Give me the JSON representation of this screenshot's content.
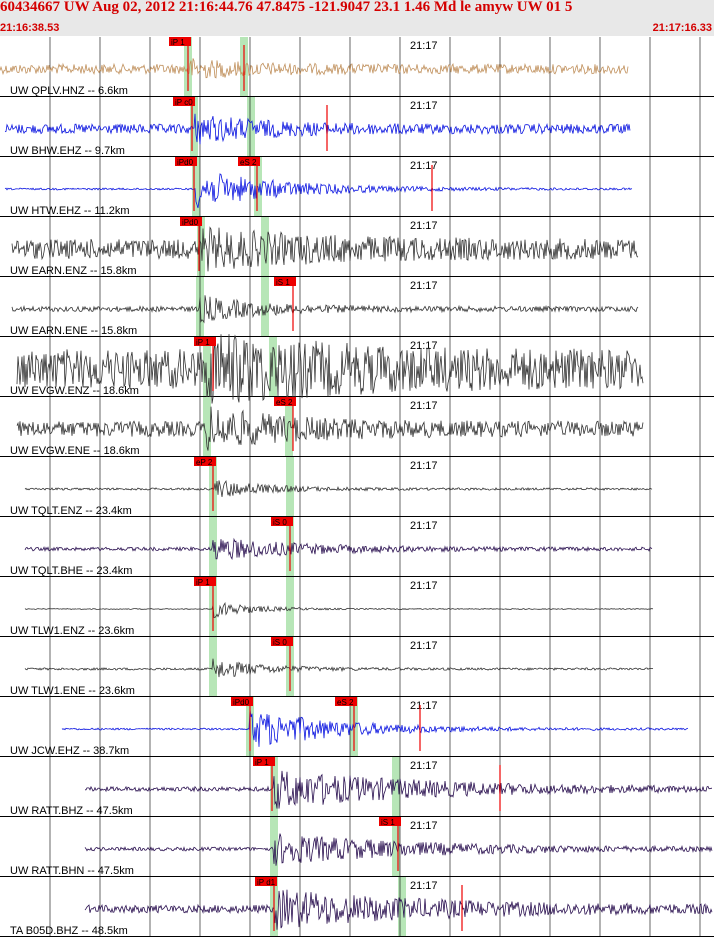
{
  "header": {
    "title": "60434667 UW Aug 02, 2012 21:16:44.76   47.8475 -121.9047 23.1 1.46 Md le amyw UW 01   5",
    "start_time": "21:16:38.53",
    "end_time": "21:17:16.33"
  },
  "minute_label": "21:17",
  "colors": {
    "tan": "#c0905c",
    "blue": "#0a14e0",
    "dark": "#333333",
    "purple": "#2a1050",
    "pick": "#ee0000",
    "green": "#b7e6b7"
  },
  "traces": [
    {
      "label": "UW QPLV.HNZ -- 6.6km",
      "color": "tan",
      "amp": 0.32,
      "noise": 0.22,
      "start": 0,
      "end": 628,
      "onset": 188,
      "spread": 60,
      "green": [
        188,
        244
      ],
      "picks": [
        {
          "label": "iP 1",
          "x": 188
        },
        {
          "label": "",
          "x": 244
        }
      ]
    },
    {
      "label": "UW BHW.EHZ -- 9.7km",
      "color": "blue",
      "amp": 0.55,
      "noise": 0.22,
      "start": 5,
      "end": 630,
      "onset": 194,
      "spread": 70,
      "green": [
        194,
        251
      ],
      "picks": [
        {
          "label": "iP c0",
          "x": 192
        },
        {
          "label": "",
          "x": 327
        }
      ]
    },
    {
      "label": "UW HTW.EHZ -- 11.2km",
      "color": "blue",
      "amp": 0.85,
      "noise": 0.04,
      "start": 5,
      "end": 632,
      "onset": 196,
      "spread": 90,
      "green": [
        196,
        258
      ],
      "picks": [
        {
          "label": "iPd0",
          "x": 194
        },
        {
          "label": "eS 2",
          "x": 257
        },
        {
          "label": "",
          "x": 432
        }
      ]
    },
    {
      "label": "UW EARN.ENZ -- 15.8km",
      "color": "dark",
      "amp": 0.6,
      "noise": 0.45,
      "start": 12,
      "end": 638,
      "onset": 201,
      "spread": 120,
      "green": [
        201,
        265
      ],
      "picks": [
        {
          "label": "iPd0",
          "x": 199
        }
      ]
    },
    {
      "label": "UW EARN.ENE -- 15.8km",
      "color": "dark",
      "amp": 0.55,
      "noise": 0.12,
      "start": 12,
      "end": 638,
      "onset": 200,
      "spread": 60,
      "green": [
        200,
        265
      ],
      "picks": [
        {
          "label": "iS 1",
          "x": 293
        }
      ]
    },
    {
      "label": "UW EVGW.ENZ -- 18.6km",
      "color": "dark",
      "amp": 0.95,
      "noise": 0.9,
      "start": 17,
      "end": 643,
      "onset": 207,
      "spread": 120,
      "green": [
        207,
        273
      ],
      "picks": [
        {
          "label": "iP 1",
          "x": 213
        }
      ]
    },
    {
      "label": "UW EVGW.ENE -- 18.6km",
      "color": "dark",
      "amp": 0.75,
      "noise": 0.35,
      "start": 17,
      "end": 643,
      "onset": 207,
      "spread": 80,
      "green": [
        207,
        289
      ],
      "picks": [
        {
          "label": "eS 2",
          "x": 293
        }
      ]
    },
    {
      "label": "UW TQLT.ENZ -- 23.4km",
      "color": "dark",
      "amp": 0.45,
      "noise": 0.05,
      "start": 25,
      "end": 652,
      "onset": 213,
      "spread": 50,
      "green": [
        213,
        290
      ],
      "picks": [
        {
          "label": "eP 2",
          "x": 213
        }
      ]
    },
    {
      "label": "UW TQLT.BHE -- 23.4km",
      "color": "purple",
      "amp": 0.5,
      "noise": 0.08,
      "start": 25,
      "end": 652,
      "onset": 213,
      "spread": 90,
      "green": [
        213,
        290
      ],
      "picks": [
        {
          "label": "iS 0",
          "x": 290
        }
      ]
    },
    {
      "label": "UW TLW1.ENZ -- 23.6km",
      "color": "dark",
      "amp": 0.4,
      "noise": 0.02,
      "start": 25,
      "end": 653,
      "onset": 213,
      "spread": 40,
      "green": [
        213,
        290
      ],
      "picks": [
        {
          "label": "iP 1",
          "x": 213
        }
      ]
    },
    {
      "label": "UW TLW1.ENE -- 23.6km",
      "color": "dark",
      "amp": 0.45,
      "noise": 0.05,
      "start": 25,
      "end": 653,
      "onset": 213,
      "spread": 50,
      "green": [
        213,
        290
      ],
      "picks": [
        {
          "label": "iS 0",
          "x": 290
        }
      ]
    },
    {
      "label": "UW JCW.EHZ -- 38.7km",
      "color": "blue",
      "amp": 0.9,
      "noise": 0.04,
      "start": 62,
      "end": 688,
      "onset": 250,
      "spread": 90,
      "green": [
        250,
        354
      ],
      "picks": [
        {
          "label": "iPd0",
          "x": 250
        },
        {
          "label": "eS 2",
          "x": 354
        },
        {
          "label": "",
          "x": 420
        }
      ]
    },
    {
      "label": "UW RATT.BHZ -- 47.5km",
      "color": "purple",
      "amp": 0.85,
      "noise": 0.1,
      "start": 85,
      "end": 712,
      "onset": 274,
      "spread": 150,
      "green": [
        274,
        396
      ],
      "picks": [
        {
          "label": "iP 1",
          "x": 272
        },
        {
          "label": "",
          "x": 500
        }
      ]
    },
    {
      "label": "UW RATT.BHN -- 47.5km",
      "color": "purple",
      "amp": 0.7,
      "noise": 0.08,
      "start": 85,
      "end": 712,
      "onset": 274,
      "spread": 140,
      "green": [
        274,
        396
      ],
      "picks": [
        {
          "label": "iS 1",
          "x": 398
        }
      ]
    },
    {
      "label": "TA B05D.BHZ -- 48.5km",
      "color": "purple",
      "amp": 0.8,
      "noise": 0.18,
      "start": 85,
      "end": 712,
      "onset": 274,
      "spread": 150,
      "green": [
        274,
        402
      ],
      "picks": [
        {
          "label": "iP d1",
          "x": 274
        },
        {
          "label": "",
          "x": 462
        }
      ]
    }
  ]
}
